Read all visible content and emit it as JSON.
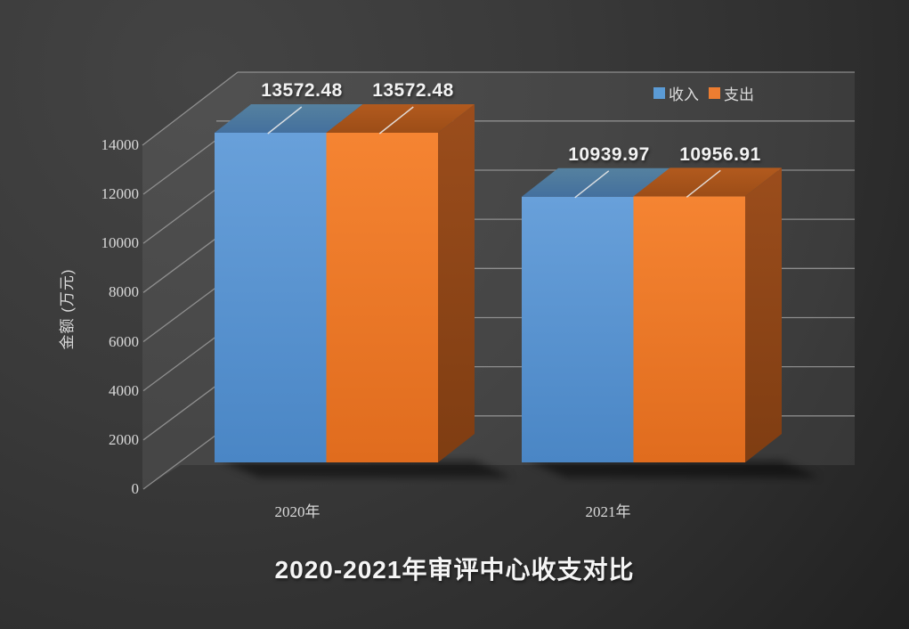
{
  "chart_data": {
    "type": "bar",
    "view": "3d",
    "title": "2020-2021年审评中心收支对比",
    "categories": [
      "2020年",
      "2021年"
    ],
    "series": [
      {
        "name": "收入",
        "color": "#5B9BD5",
        "values": [
          13572.48,
          10939.97
        ],
        "labels": [
          "13572.48",
          "10939.97"
        ]
      },
      {
        "name": "支出",
        "color": "#ED7D31",
        "values": [
          13572.48,
          10956.91
        ],
        "labels": [
          "13572.48",
          "10956.91"
        ]
      }
    ],
    "ylabel": "金额 (万元)",
    "yticks": [
      "14000",
      "12000",
      "10000",
      "8000",
      "6000",
      "4000",
      "2000",
      "0"
    ],
    "ylim": [
      0,
      14000
    ],
    "ytick_interval": 2000,
    "grid": true,
    "legend_position": "top-right"
  },
  "colors": {
    "income_front": [
      "#68A0DA",
      "#4A86C5"
    ],
    "income_top": [
      "#55819F",
      "#44709E"
    ],
    "expense_front": [
      "#F58432",
      "#E06C1E"
    ],
    "expense_top": [
      "#B25A1E",
      "#9C4D17"
    ],
    "expense_side": [
      "#9B4D1C",
      "#7F3D12"
    ],
    "gridline": "#A0A0A0",
    "leader_line": "#E9E9E9",
    "label_text": "#F2F2F2",
    "axis_text": "#D9D9D9"
  }
}
